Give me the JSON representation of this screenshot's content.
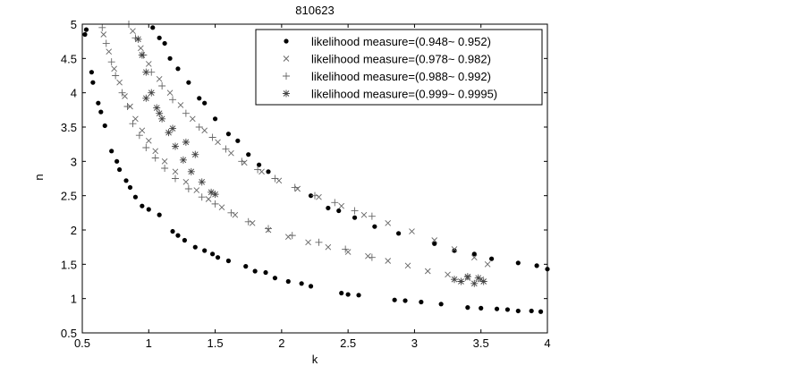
{
  "chart_data": {
    "type": "scatter",
    "title": "810623",
    "xlabel": "k",
    "ylabel": "n",
    "xlim": [
      0.5,
      4
    ],
    "ylim": [
      0.5,
      5
    ],
    "xticks": [
      0.5,
      1,
      1.5,
      2,
      2.5,
      3,
      3.5,
      4
    ],
    "yticks": [
      0.5,
      1,
      1.5,
      2,
      2.5,
      3,
      3.5,
      4,
      4.5,
      5
    ],
    "xtick_labels": [
      "0.5",
      "1",
      "1.5",
      "2",
      "2.5",
      "3",
      "3.5",
      "4"
    ],
    "ytick_labels": [
      "0.5",
      "1",
      "1.5",
      "2",
      "2.5",
      "3",
      "3.5",
      "4",
      "4.5",
      "5"
    ],
    "grid": false,
    "legend_position": "top-right",
    "series": [
      {
        "name": "likelihood measure=(0.948~ 0.952)",
        "marker": "dot",
        "color": "#000000",
        "points": [
          [
            0.53,
            4.92
          ],
          [
            0.52,
            4.85
          ],
          [
            0.57,
            4.3
          ],
          [
            0.58,
            4.15
          ],
          [
            0.62,
            3.85
          ],
          [
            0.64,
            3.72
          ],
          [
            0.67,
            3.52
          ],
          [
            0.72,
            3.15
          ],
          [
            0.76,
            3.0
          ],
          [
            0.78,
            2.88
          ],
          [
            0.83,
            2.72
          ],
          [
            0.86,
            2.62
          ],
          [
            0.9,
            2.48
          ],
          [
            0.95,
            2.35
          ],
          [
            1.0,
            2.3
          ],
          [
            1.08,
            2.22
          ],
          [
            1.18,
            1.98
          ],
          [
            1.22,
            1.92
          ],
          [
            1.27,
            1.85
          ],
          [
            1.35,
            1.75
          ],
          [
            1.42,
            1.7
          ],
          [
            1.48,
            1.65
          ],
          [
            1.52,
            1.6
          ],
          [
            1.6,
            1.55
          ],
          [
            1.73,
            1.47
          ],
          [
            1.8,
            1.4
          ],
          [
            1.88,
            1.38
          ],
          [
            1.95,
            1.3
          ],
          [
            2.05,
            1.25
          ],
          [
            2.15,
            1.22
          ],
          [
            2.22,
            1.18
          ],
          [
            2.45,
            1.08
          ],
          [
            2.5,
            1.06
          ],
          [
            2.58,
            1.05
          ],
          [
            2.85,
            0.98
          ],
          [
            2.93,
            0.97
          ],
          [
            3.05,
            0.95
          ],
          [
            3.2,
            0.92
          ],
          [
            3.4,
            0.87
          ],
          [
            3.5,
            0.86
          ],
          [
            3.62,
            0.85
          ],
          [
            3.7,
            0.84
          ],
          [
            3.78,
            0.82
          ],
          [
            3.88,
            0.82
          ],
          [
            3.95,
            0.81
          ],
          [
            1.03,
            4.95
          ],
          [
            1.08,
            4.8
          ],
          [
            1.12,
            4.72
          ],
          [
            1.16,
            4.5
          ],
          [
            1.22,
            4.35
          ],
          [
            1.3,
            4.15
          ],
          [
            1.38,
            3.92
          ],
          [
            1.42,
            3.85
          ],
          [
            1.5,
            3.62
          ],
          [
            1.6,
            3.4
          ],
          [
            1.67,
            3.3
          ],
          [
            1.75,
            3.1
          ],
          [
            1.83,
            2.95
          ],
          [
            1.9,
            2.85
          ],
          [
            2.22,
            2.5
          ],
          [
            2.35,
            2.32
          ],
          [
            2.43,
            2.28
          ],
          [
            2.55,
            2.18
          ],
          [
            2.7,
            2.05
          ],
          [
            2.88,
            1.95
          ],
          [
            3.15,
            1.8
          ],
          [
            3.3,
            1.7
          ],
          [
            3.45,
            1.65
          ],
          [
            3.58,
            1.58
          ],
          [
            3.78,
            1.52
          ],
          [
            3.92,
            1.48
          ],
          [
            4.0,
            1.43
          ]
        ]
      },
      {
        "name": "likelihood measure=(0.978~ 0.982)",
        "marker": "x",
        "color": "#666666",
        "points": [
          [
            0.66,
            4.85
          ],
          [
            0.7,
            4.6
          ],
          [
            0.74,
            4.35
          ],
          [
            0.78,
            4.15
          ],
          [
            0.82,
            3.95
          ],
          [
            0.86,
            3.8
          ],
          [
            0.9,
            3.62
          ],
          [
            0.95,
            3.45
          ],
          [
            1.0,
            3.3
          ],
          [
            1.05,
            3.15
          ],
          [
            1.12,
            3.0
          ],
          [
            1.2,
            2.85
          ],
          [
            1.28,
            2.7
          ],
          [
            1.36,
            2.58
          ],
          [
            1.45,
            2.45
          ],
          [
            1.55,
            2.33
          ],
          [
            1.65,
            2.22
          ],
          [
            1.78,
            2.1
          ],
          [
            1.9,
            2.0
          ],
          [
            2.05,
            1.9
          ],
          [
            2.2,
            1.82
          ],
          [
            2.35,
            1.75
          ],
          [
            2.5,
            1.68
          ],
          [
            2.65,
            1.62
          ],
          [
            2.8,
            1.55
          ],
          [
            2.95,
            1.48
          ],
          [
            3.1,
            1.4
          ],
          [
            3.25,
            1.35
          ],
          [
            3.4,
            1.3
          ],
          [
            3.5,
            1.28
          ],
          [
            0.88,
            4.9
          ],
          [
            0.94,
            4.65
          ],
          [
            1.0,
            4.42
          ],
          [
            1.08,
            4.2
          ],
          [
            1.16,
            4.0
          ],
          [
            1.24,
            3.82
          ],
          [
            1.33,
            3.62
          ],
          [
            1.42,
            3.45
          ],
          [
            1.52,
            3.28
          ],
          [
            1.62,
            3.12
          ],
          [
            1.72,
            2.98
          ],
          [
            1.85,
            2.85
          ],
          [
            1.98,
            2.72
          ],
          [
            2.12,
            2.6
          ],
          [
            2.28,
            2.48
          ],
          [
            2.45,
            2.35
          ],
          [
            2.62,
            2.22
          ],
          [
            2.8,
            2.1
          ],
          [
            2.98,
            1.98
          ],
          [
            3.15,
            1.85
          ],
          [
            3.3,
            1.72
          ],
          [
            3.45,
            1.6
          ],
          [
            3.55,
            1.5
          ]
        ]
      },
      {
        "name": "likelihood measure=(0.988~ 0.992)",
        "marker": "plus",
        "color": "#666666",
        "points": [
          [
            0.65,
            4.95
          ],
          [
            0.68,
            4.72
          ],
          [
            0.72,
            4.45
          ],
          [
            0.75,
            4.25
          ],
          [
            0.8,
            4.0
          ],
          [
            0.84,
            3.8
          ],
          [
            0.88,
            3.55
          ],
          [
            0.93,
            3.38
          ],
          [
            0.98,
            3.2
          ],
          [
            1.05,
            3.05
          ],
          [
            1.12,
            2.9
          ],
          [
            1.2,
            2.75
          ],
          [
            1.3,
            2.6
          ],
          [
            1.4,
            2.48
          ],
          [
            1.5,
            2.38
          ],
          [
            1.62,
            2.25
          ],
          [
            1.75,
            2.12
          ],
          [
            1.9,
            2.02
          ],
          [
            2.08,
            1.92
          ],
          [
            2.28,
            1.82
          ],
          [
            2.48,
            1.72
          ],
          [
            2.68,
            1.6
          ],
          [
            0.85,
            5.0
          ],
          [
            0.9,
            4.8
          ],
          [
            0.96,
            4.55
          ],
          [
            1.02,
            4.3
          ],
          [
            1.1,
            4.1
          ],
          [
            1.18,
            3.9
          ],
          [
            1.28,
            3.7
          ],
          [
            1.38,
            3.5
          ],
          [
            1.48,
            3.35
          ],
          [
            1.58,
            3.18
          ],
          [
            1.7,
            3.0
          ],
          [
            1.82,
            2.88
          ],
          [
            1.95,
            2.75
          ],
          [
            2.1,
            2.62
          ],
          [
            2.25,
            2.5
          ],
          [
            2.4,
            2.4
          ],
          [
            2.55,
            2.28
          ],
          [
            2.68,
            2.2
          ]
        ]
      },
      {
        "name": "likelihood measure=(0.999~ 0.9995)",
        "marker": "star",
        "color": "#444444",
        "points": [
          [
            0.92,
            4.78
          ],
          [
            0.95,
            4.55
          ],
          [
            0.98,
            4.3
          ],
          [
            1.02,
            4.0
          ],
          [
            1.06,
            3.78
          ],
          [
            1.1,
            3.62
          ],
          [
            1.15,
            3.42
          ],
          [
            1.2,
            3.22
          ],
          [
            1.26,
            3.02
          ],
          [
            1.32,
            2.85
          ],
          [
            1.4,
            2.7
          ],
          [
            1.47,
            2.55
          ],
          [
            1.5,
            2.52
          ],
          [
            0.98,
            3.92
          ],
          [
            1.08,
            3.7
          ],
          [
            1.18,
            3.48
          ],
          [
            1.28,
            3.28
          ],
          [
            1.35,
            3.1
          ],
          [
            3.35,
            1.25
          ],
          [
            3.45,
            1.22
          ],
          [
            3.52,
            1.25
          ],
          [
            3.4,
            1.32
          ],
          [
            3.3,
            1.28
          ],
          [
            3.48,
            1.3
          ]
        ]
      }
    ]
  }
}
